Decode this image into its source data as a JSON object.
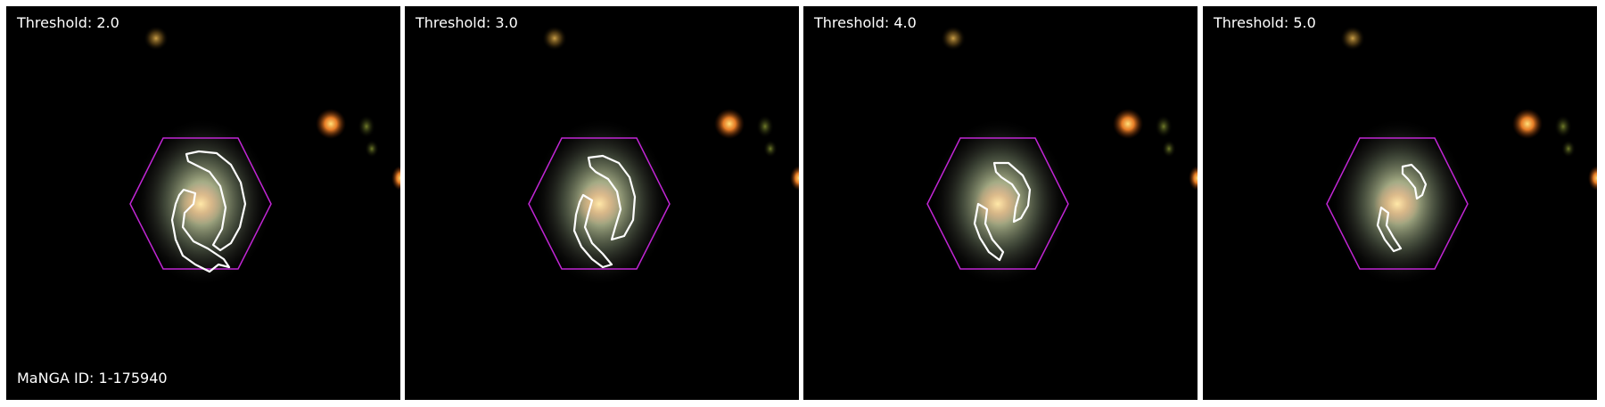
{
  "manga_id_label": "MaNGA ID: 1-175940",
  "panels": [
    {
      "threshold_label": "Threshold: 2.0",
      "threshold": 2.0
    },
    {
      "threshold_label": "Threshold: 3.0",
      "threshold": 3.0
    },
    {
      "threshold_label": "Threshold: 4.0",
      "threshold": 4.0
    },
    {
      "threshold_label": "Threshold: 5.0",
      "threshold": 5.0
    }
  ],
  "colors": {
    "hexagon": "#c026d3",
    "contour": "#ffffff",
    "background": "#000000"
  }
}
